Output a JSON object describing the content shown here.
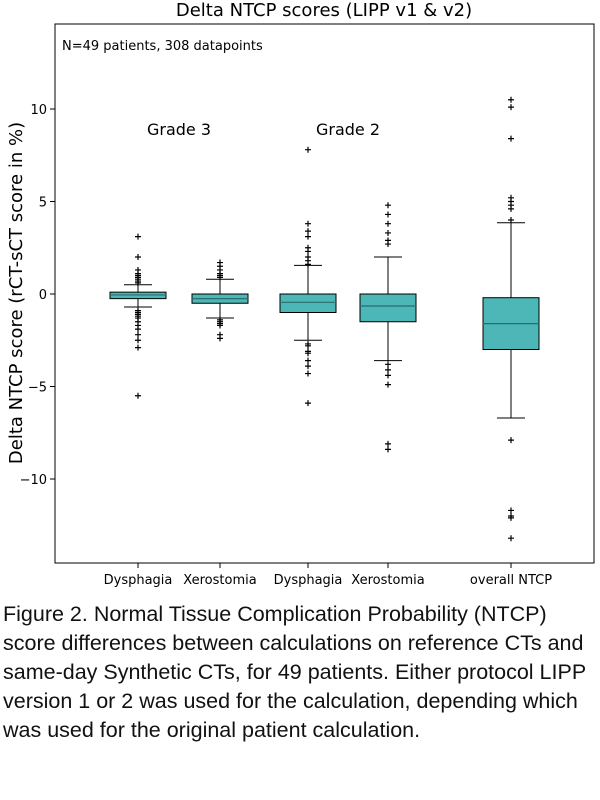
{
  "chart_data": {
    "type": "box",
    "title": "Delta NTCP scores (LIPP v1 & v2)",
    "annotation": "N=49 patients, 308 datapoints",
    "ylabel": "Delta NTCP score (rCT-sCT score in %)",
    "xlabel": "",
    "ylim": [
      -14.5,
      14.5
    ],
    "yticks": [
      10,
      5,
      0,
      -5,
      -10
    ],
    "ytick_labels": [
      "10",
      "5",
      "0",
      "−5",
      "−10"
    ],
    "categories": [
      "Dysphagia",
      "Xerostomia",
      "Dysphagia",
      "Xerostomia",
      "overall NTCP"
    ],
    "group_labels": [
      {
        "label": "Grade 3",
        "categories": [
          0,
          1
        ]
      },
      {
        "label": "Grade 2",
        "categories": [
          2,
          3
        ]
      }
    ],
    "box_color": "#4DB6B6",
    "boxes": [
      {
        "category": "Dysphagia",
        "group": "Grade 3",
        "whisker_low": -0.7,
        "q1": -0.25,
        "median": -0.05,
        "q3": 0.1,
        "whisker_high": 0.5,
        "outliers": [
          3.1,
          2.0,
          1.3,
          1.1,
          1.0,
          0.9,
          0.8,
          0.7,
          0.6,
          -0.9,
          -1.0,
          -1.1,
          -1.2,
          -1.3,
          -1.5,
          -1.7,
          -1.9,
          -2.2,
          -2.5,
          -2.9,
          -5.5
        ]
      },
      {
        "category": "Xerostomia",
        "group": "Grade 3",
        "whisker_low": -1.3,
        "q1": -0.5,
        "median": -0.25,
        "q3": 0.0,
        "whisker_high": 0.8,
        "outliers": [
          1.7,
          1.5,
          1.3,
          1.1,
          1.0,
          0.9,
          -1.4,
          -1.5,
          -1.6,
          -1.7,
          -2.2,
          -2.4
        ]
      },
      {
        "category": "Dysphagia",
        "group": "Grade 2",
        "whisker_low": -2.5,
        "q1": -1.0,
        "median": -0.45,
        "q3": 0.0,
        "whisker_high": 1.55,
        "outliers": [
          7.8,
          3.8,
          3.4,
          3.1,
          2.5,
          2.3,
          2.0,
          1.8,
          1.6,
          -2.7,
          -2.8,
          -3.1,
          -3.2,
          -3.6,
          -3.9,
          -4.3,
          -5.9
        ]
      },
      {
        "category": "Xerostomia",
        "group": "Grade 2",
        "whisker_low": -3.6,
        "q1": -1.5,
        "median": -0.65,
        "q3": 0.0,
        "whisker_high": 2.0,
        "outliers": [
          4.8,
          4.3,
          3.8,
          3.3,
          2.9,
          2.7,
          -3.8,
          -4.1,
          -4.4,
          -4.9,
          -8.1,
          -8.4
        ]
      },
      {
        "category": "overall NTCP",
        "group": "",
        "whisker_low": -6.7,
        "q1": -3.0,
        "median": -1.6,
        "q3": -0.2,
        "whisker_high": 3.85,
        "outliers": [
          10.5,
          10.1,
          8.4,
          5.2,
          5.0,
          4.8,
          4.6,
          4.0,
          -7.9,
          -11.7,
          -12.0,
          -12.1,
          -13.2
        ]
      }
    ]
  },
  "caption": "Figure 2. Normal Tissue Complication Probability (NTCP) score differences between calculations on reference CTs and same-day Synthetic CTs, for 49 patients. Either protocol LIPP version 1 or 2 was used for the calculation, depending which was used for the original patient calculation."
}
